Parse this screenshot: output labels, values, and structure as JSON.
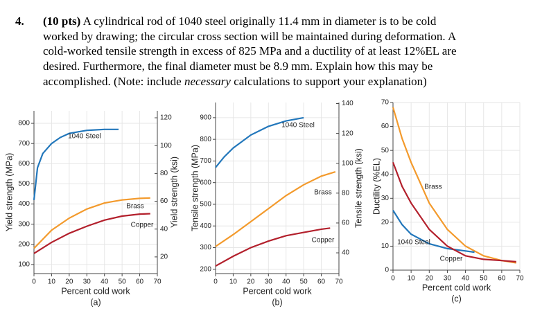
{
  "problem": {
    "number": "4.",
    "points": "(10 pts)",
    "first_line": "A cylindrical rod of 1040 steel originally 11.4 mm in diameter is to be cold",
    "lines": [
      "worked by drawing; the circular cross section will be maintained during deformation. A",
      "cold-worked tensile strength in excess of 825 MPa and a ductility of at least 12%EL are",
      "desired. Furthermore, the final diameter must be 8.9 mm. Explain how this may be"
    ],
    "last_line": {
      "before": "accomplished. (Note: include ",
      "emphasis": "necessary",
      "after": " calculations to support your explanation)"
    }
  },
  "chart_data": [
    {
      "type": "line",
      "panel": "(a)",
      "x_label": "Percent cold work",
      "y_label": "Yield strength (MPa)",
      "y2_label": "Yield strength (ksi)",
      "xlim": [
        0,
        70
      ],
      "xticks": [
        0,
        10,
        20,
        30,
        40,
        50,
        60,
        70
      ],
      "ylim": [
        55,
        862
      ],
      "yticks": [
        100,
        200,
        300,
        400,
        500,
        600,
        700,
        800
      ],
      "y2lim": [
        8,
        125
      ],
      "y2ticks": [
        20,
        40,
        60,
        80,
        100,
        120
      ],
      "grid": true,
      "series": [
        {
          "name": "1040 Steel",
          "color": "#2277bb",
          "x": [
            0,
            2,
            5,
            10,
            15,
            20,
            30,
            40,
            48
          ],
          "values": [
            420,
            580,
            650,
            700,
            730,
            750,
            765,
            770,
            770
          ]
        },
        {
          "name": "Brass",
          "color": "#f39a2c",
          "x": [
            0,
            10,
            20,
            30,
            40,
            50,
            60,
            66
          ],
          "values": [
            180,
            270,
            330,
            375,
            405,
            420,
            428,
            430
          ]
        },
        {
          "name": "Copper",
          "color": "#b3202c",
          "x": [
            0,
            10,
            20,
            30,
            40,
            50,
            60,
            66
          ],
          "values": [
            155,
            210,
            255,
            290,
            320,
            340,
            350,
            352
          ]
        }
      ]
    },
    {
      "type": "line",
      "panel": "(b)",
      "x_label": "Percent cold work",
      "y_label": "Tensile strength (MPa)",
      "y2_label": "Tensile strength (ksi)",
      "xlim": [
        0,
        70
      ],
      "xticks": [
        0,
        10,
        20,
        30,
        40,
        50,
        60,
        70
      ],
      "ylim": [
        180,
        970
      ],
      "yticks": [
        200,
        300,
        400,
        500,
        600,
        700,
        800,
        900
      ],
      "y2lim": [
        26.1,
        140.7
      ],
      "y2ticks": [
        40,
        60,
        80,
        100,
        120,
        140
      ],
      "grid": true,
      "series": [
        {
          "name": "1040 Steel",
          "color": "#2277bb",
          "x": [
            0,
            5,
            10,
            20,
            30,
            40,
            50
          ],
          "values": [
            670,
            720,
            760,
            820,
            860,
            885,
            900
          ]
        },
        {
          "name": "Brass",
          "color": "#f39a2c",
          "x": [
            0,
            10,
            20,
            30,
            40,
            50,
            60,
            68
          ],
          "values": [
            305,
            360,
            420,
            480,
            540,
            590,
            630,
            650
          ]
        },
        {
          "name": "Copper",
          "color": "#b3202c",
          "x": [
            0,
            10,
            20,
            30,
            40,
            50,
            60,
            65
          ],
          "values": [
            215,
            260,
            300,
            330,
            355,
            370,
            385,
            390
          ]
        }
      ]
    },
    {
      "type": "line",
      "panel": "(c)",
      "x_label": "Percent cold work",
      "y_label": "Ductility (%EL)",
      "xlim": [
        0,
        70
      ],
      "xticks": [
        0,
        10,
        20,
        30,
        40,
        50,
        60,
        70
      ],
      "ylim": [
        0,
        70
      ],
      "yticks": [
        0,
        10,
        20,
        30,
        40,
        50,
        60,
        70
      ],
      "grid": true,
      "series": [
        {
          "name": "Brass",
          "color": "#f39a2c",
          "x": [
            0,
            5,
            10,
            20,
            30,
            40,
            50,
            60,
            68
          ],
          "values": [
            68,
            55,
            45,
            28,
            17,
            10,
            6,
            4,
            3
          ]
        },
        {
          "name": "1040 Steel",
          "color": "#2277bb",
          "x": [
            0,
            5,
            10,
            20,
            30,
            40,
            45
          ],
          "values": [
            25,
            19,
            15,
            11,
            9,
            8,
            7.5
          ]
        },
        {
          "name": "Copper",
          "color": "#b3202c",
          "x": [
            0,
            5,
            10,
            20,
            30,
            40,
            50,
            60,
            68
          ],
          "values": [
            45,
            35,
            28,
            17,
            10,
            6,
            4.5,
            4,
            3.5
          ]
        }
      ]
    }
  ]
}
